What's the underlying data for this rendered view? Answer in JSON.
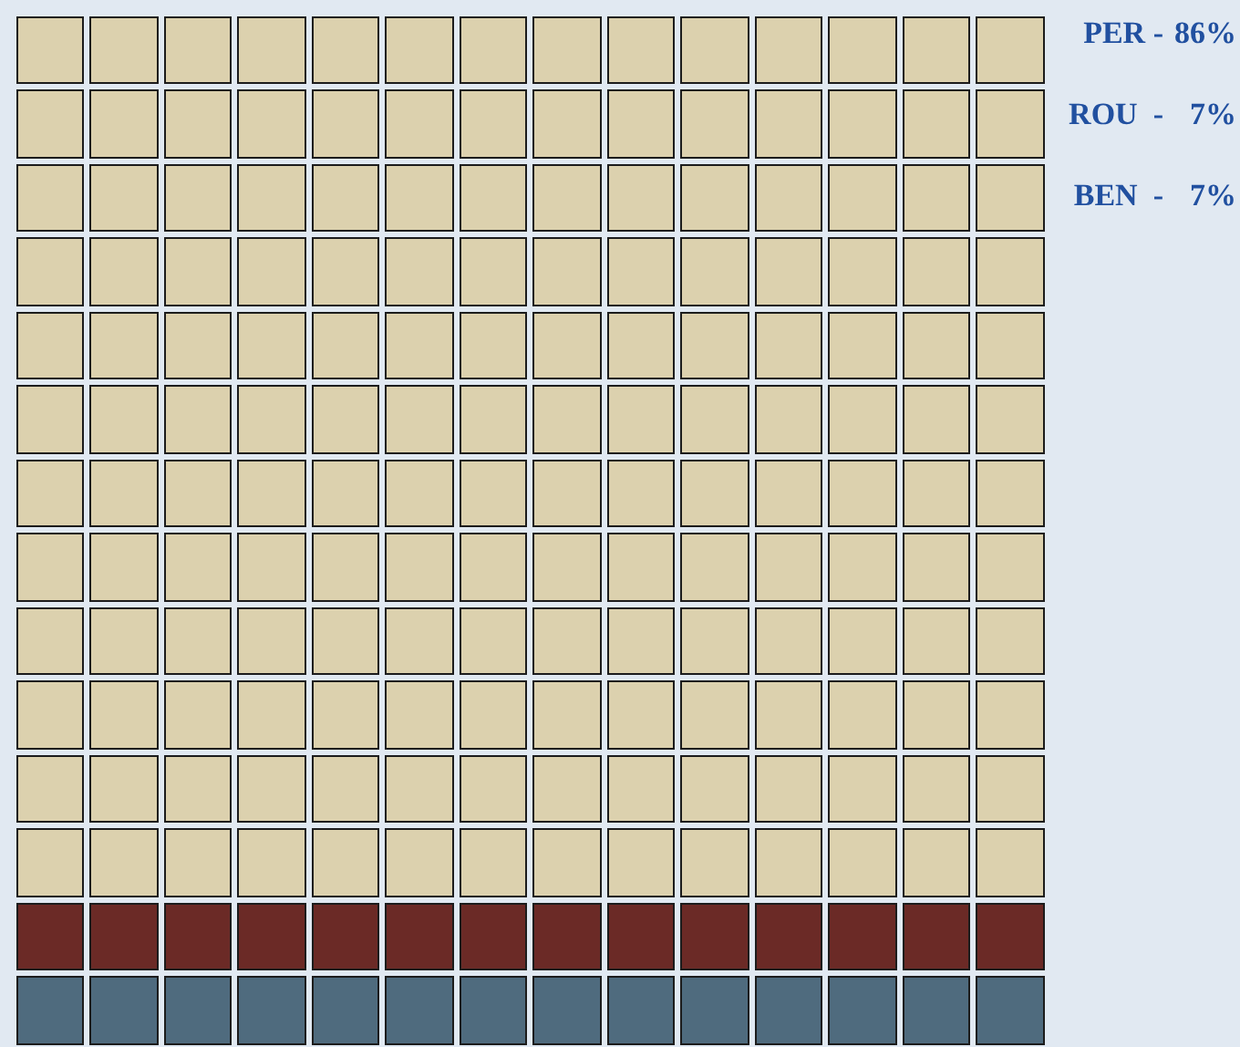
{
  "chart_data": {
    "type": "other",
    "categories": [
      "PER -",
      "ROU  -",
      "BEN  -"
    ],
    "values": [
      86,
      7,
      7
    ],
    "value_labels": [
      "86%",
      "7%",
      "7%"
    ],
    "colors": [
      "#dcd1ae",
      "#6b2a26",
      "#4f6b7e"
    ]
  }
}
